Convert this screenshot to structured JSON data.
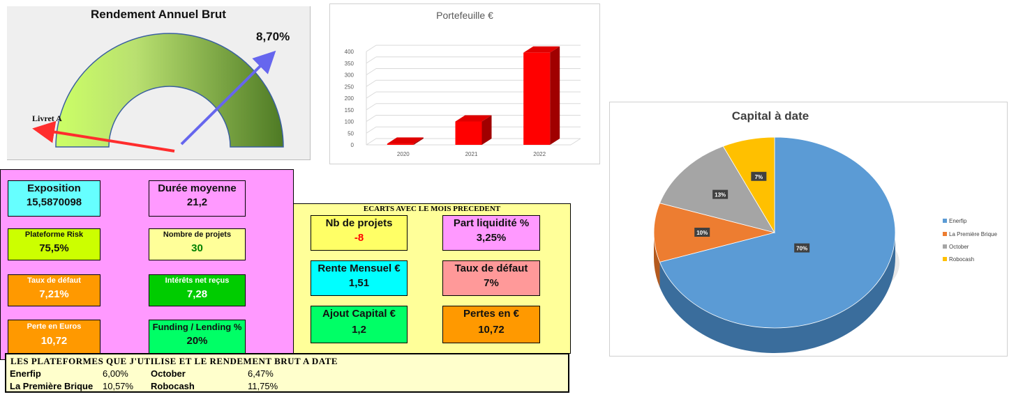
{
  "gauge": {
    "title": "Rendement Annuel Brut",
    "value_label": "8,70%",
    "reference_label": "Livret A"
  },
  "chart_data": [
    {
      "type": "bar",
      "title": "Portefeuille €",
      "categories": [
        "2020",
        "2021",
        "2022"
      ],
      "values": [
        5,
        100,
        395
      ],
      "ylim": [
        0,
        400
      ],
      "yticks": [
        "0",
        "50",
        "100",
        "150",
        "200",
        "250",
        "300",
        "350",
        "400"
      ],
      "grid": true,
      "color": "#ff0000"
    },
    {
      "type": "pie",
      "title": "Capital à date",
      "categories": [
        "Enerfip",
        "La Première Brique",
        "October",
        "Robocash"
      ],
      "values": [
        70,
        10,
        13,
        7
      ],
      "labels": [
        "70%",
        "10%",
        "13%",
        "7%"
      ],
      "colors": [
        "#5b9bd5",
        "#ed7d31",
        "#a5a5a5",
        "#ffc000"
      ],
      "legend": "right"
    }
  ],
  "indicators": {
    "exposition": {
      "label": "Exposition",
      "value": "15,5870098",
      "color": "#66ffff"
    },
    "duree": {
      "label": "Durée moyenne",
      "value": "21,2",
      "color": "#ff99ff"
    },
    "risk": {
      "label": "Plateforme Risk",
      "value": "75,5%",
      "color": "#ccff00"
    },
    "nb_projets": {
      "label": "Nombre de projets",
      "value": "30",
      "color": "#ffff99",
      "value_color": "#008000"
    },
    "taux_defaut": {
      "label": "Taux de défaut",
      "value": "7,21%",
      "color": "#ff9900"
    },
    "interets": {
      "label": "Intérêts net reçus",
      "value": "7,28",
      "color": "#00cc00"
    },
    "perte": {
      "label": "Perte en Euros",
      "value": "10,72",
      "color": "#ff9900"
    },
    "funding": {
      "label": "Funding / Lending %",
      "value": "20%",
      "color": "#00ff66"
    }
  },
  "ecarts": {
    "title": "ECARTS AVEC LE MOIS PRECEDENT",
    "nb_projets": {
      "label": "Nb de projets",
      "value": "-8",
      "color": "#ffff66",
      "value_color": "#ff0000"
    },
    "part_liquidite": {
      "label": "Part liquidité %",
      "value": "3,25%",
      "color": "#ff99ff"
    },
    "rente": {
      "label": "Rente Mensuel €",
      "value": "1,51",
      "color": "#00ffff"
    },
    "taux_defaut": {
      "label": "Taux de défaut",
      "value": "7%",
      "color": "#ff9999"
    },
    "ajout": {
      "label": "Ajout Capital €",
      "value": "1,2",
      "color": "#00ff66"
    },
    "pertes": {
      "label": "Pertes en €",
      "value": "10,72",
      "color": "#ff9900"
    }
  },
  "platforms": {
    "title": "LES PLATEFORMES QUE J'UTILISE ET LE RENDEMENT BRUT A DATE",
    "items": [
      {
        "name": "Enerfip",
        "rate": "6,00%"
      },
      {
        "name": "October",
        "rate": "6,47%"
      },
      {
        "name": "La Première Brique",
        "rate": "10,57%"
      },
      {
        "name": "Robocash",
        "rate": "11,75%"
      }
    ]
  }
}
